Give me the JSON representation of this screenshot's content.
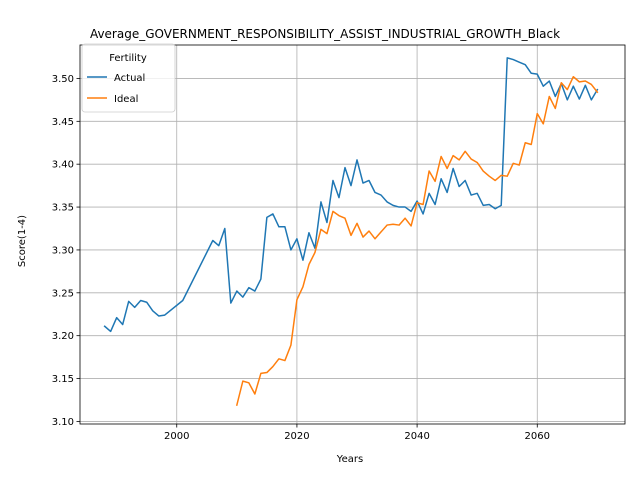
{
  "chart_data": {
    "type": "line",
    "title": "Average_GOVERNMENT_RESPONSIBILITY_ASSIST_INDUSTRIAL_GROWTH_Black",
    "xlabel": "Years",
    "ylabel": "Score(1-4)",
    "xlim": [
      1983.9,
      2074.6
    ],
    "ylim": [
      3.097,
      3.539
    ],
    "xticks": [
      2000,
      2020,
      2040,
      2060
    ],
    "yticks": [
      3.1,
      3.15,
      3.2,
      3.25,
      3.3,
      3.35,
      3.4,
      3.45,
      3.5
    ],
    "yticks_text": [
      "3.10",
      "3.15",
      "3.20",
      "3.25",
      "3.30",
      "3.35",
      "3.40",
      "3.45",
      "3.50"
    ],
    "grid": true,
    "legend": {
      "title": "Fertility",
      "position": "top-left"
    },
    "series": [
      {
        "name": "Actual",
        "color": "#1f77b4",
        "points": [
          [
            1988,
            3.211
          ],
          [
            1989,
            3.205
          ],
          [
            1990,
            3.221
          ],
          [
            1991,
            3.213
          ],
          [
            1992,
            3.24
          ],
          [
            1993,
            3.233
          ],
          [
            1994,
            3.241
          ],
          [
            1995,
            3.239
          ],
          [
            1996,
            3.229
          ],
          [
            1997,
            3.223
          ],
          [
            1998,
            3.224
          ],
          [
            2001,
            3.241
          ],
          [
            2006,
            3.311
          ],
          [
            2007,
            3.305
          ],
          [
            2008,
            3.325
          ],
          [
            2009,
            3.238
          ],
          [
            2010,
            3.252
          ],
          [
            2011,
            3.245
          ],
          [
            2012,
            3.256
          ],
          [
            2013,
            3.252
          ],
          [
            2014,
            3.266
          ],
          [
            2015,
            3.338
          ],
          [
            2016,
            3.342
          ],
          [
            2017,
            3.327
          ],
          [
            2018,
            3.327
          ],
          [
            2019,
            3.3
          ],
          [
            2020,
            3.313
          ],
          [
            2021,
            3.288
          ],
          [
            2022,
            3.32
          ],
          [
            2023,
            3.302
          ],
          [
            2024,
            3.356
          ],
          [
            2025,
            3.332
          ],
          [
            2026,
            3.381
          ],
          [
            2027,
            3.361
          ],
          [
            2028,
            3.396
          ],
          [
            2029,
            3.375
          ],
          [
            2030,
            3.405
          ],
          [
            2031,
            3.378
          ],
          [
            2032,
            3.381
          ],
          [
            2033,
            3.367
          ],
          [
            2034,
            3.364
          ],
          [
            2035,
            3.356
          ],
          [
            2036,
            3.352
          ],
          [
            2037,
            3.35
          ],
          [
            2038,
            3.35
          ],
          [
            2039,
            3.345
          ],
          [
            2040,
            3.357
          ],
          [
            2041,
            3.342
          ],
          [
            2042,
            3.366
          ],
          [
            2043,
            3.353
          ],
          [
            2044,
            3.383
          ],
          [
            2045,
            3.367
          ],
          [
            2046,
            3.395
          ],
          [
            2047,
            3.374
          ],
          [
            2048,
            3.381
          ],
          [
            2049,
            3.364
          ],
          [
            2050,
            3.366
          ],
          [
            2051,
            3.352
          ],
          [
            2052,
            3.353
          ],
          [
            2053,
            3.348
          ],
          [
            2054,
            3.352
          ],
          [
            2055,
            3.524
          ],
          [
            2056,
            3.522
          ],
          [
            2057,
            3.519
          ],
          [
            2058,
            3.516
          ],
          [
            2059,
            3.506
          ],
          [
            2060,
            3.505
          ],
          [
            2061,
            3.491
          ],
          [
            2062,
            3.497
          ],
          [
            2063,
            3.479
          ],
          [
            2064,
            3.494
          ],
          [
            2065,
            3.475
          ],
          [
            2066,
            3.491
          ],
          [
            2067,
            3.476
          ],
          [
            2068,
            3.492
          ],
          [
            2069,
            3.475
          ],
          [
            2070,
            3.487
          ]
        ]
      },
      {
        "name": "Ideal",
        "color": "#ff7f0e",
        "points": [
          [
            2010,
            3.119
          ],
          [
            2011,
            3.147
          ],
          [
            2012,
            3.145
          ],
          [
            2013,
            3.132
          ],
          [
            2014,
            3.156
          ],
          [
            2015,
            3.157
          ],
          [
            2016,
            3.164
          ],
          [
            2017,
            3.173
          ],
          [
            2018,
            3.171
          ],
          [
            2019,
            3.189
          ],
          [
            2020,
            3.242
          ],
          [
            2021,
            3.257
          ],
          [
            2022,
            3.283
          ],
          [
            2023,
            3.297
          ],
          [
            2024,
            3.324
          ],
          [
            2025,
            3.319
          ],
          [
            2026,
            3.345
          ],
          [
            2027,
            3.34
          ],
          [
            2028,
            3.337
          ],
          [
            2029,
            3.317
          ],
          [
            2030,
            3.331
          ],
          [
            2031,
            3.315
          ],
          [
            2032,
            3.322
          ],
          [
            2033,
            3.313
          ],
          [
            2034,
            3.321
          ],
          [
            2035,
            3.329
          ],
          [
            2036,
            3.33
          ],
          [
            2037,
            3.329
          ],
          [
            2038,
            3.337
          ],
          [
            2039,
            3.328
          ],
          [
            2040,
            3.355
          ],
          [
            2041,
            3.353
          ],
          [
            2042,
            3.392
          ],
          [
            2043,
            3.38
          ],
          [
            2044,
            3.409
          ],
          [
            2045,
            3.395
          ],
          [
            2046,
            3.41
          ],
          [
            2047,
            3.405
          ],
          [
            2048,
            3.415
          ],
          [
            2049,
            3.406
          ],
          [
            2050,
            3.402
          ],
          [
            2051,
            3.392
          ],
          [
            2052,
            3.386
          ],
          [
            2053,
            3.381
          ],
          [
            2054,
            3.387
          ],
          [
            2055,
            3.386
          ],
          [
            2056,
            3.401
          ],
          [
            2057,
            3.399
          ],
          [
            2058,
            3.425
          ],
          [
            2059,
            3.423
          ],
          [
            2060,
            3.459
          ],
          [
            2061,
            3.447
          ],
          [
            2062,
            3.479
          ],
          [
            2063,
            3.465
          ],
          [
            2064,
            3.495
          ],
          [
            2065,
            3.487
          ],
          [
            2066,
            3.502
          ],
          [
            2067,
            3.496
          ],
          [
            2068,
            3.497
          ],
          [
            2069,
            3.493
          ],
          [
            2070,
            3.484
          ]
        ]
      }
    ]
  }
}
